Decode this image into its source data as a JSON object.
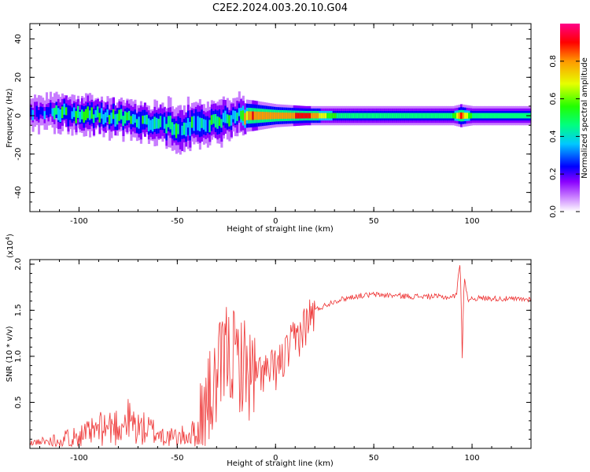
{
  "title": "C2E2.2024.003.20.10.G04",
  "chart_data": [
    {
      "type": "heatmap",
      "xlabel": "Height of straight line (km)",
      "ylabel": "Frequency (Hz)",
      "xlim": [
        -125,
        130
      ],
      "ylim": [
        -50,
        48
      ],
      "x_ticks": [
        -100,
        -50,
        0,
        50,
        100
      ],
      "y_ticks": [
        -40,
        -20,
        0,
        20,
        40
      ],
      "colorbar": {
        "label": "Normalized spectral amplitude",
        "range": [
          0,
          1
        ],
        "ticks": [
          "0.0",
          "0.2",
          "0.4",
          "0.6",
          "0.8"
        ],
        "tick_values": [
          0.0,
          0.2,
          0.4,
          0.6,
          0.8
        ],
        "colors": [
          "#ffffff",
          "#c87dff",
          "#8a00ff",
          "#0000ff",
          "#00c8ff",
          "#00ff7f",
          "#22ff00",
          "#e6ff00",
          "#ff9900",
          "#ff0000",
          "#ff0088"
        ]
      },
      "ridge": [
        {
          "x": -120,
          "center_hz": 2,
          "width_hz": 8,
          "amplitude": 0.3
        },
        {
          "x": -110,
          "center_hz": 2,
          "width_hz": 9,
          "amplitude": 0.45
        },
        {
          "x": -100,
          "center_hz": 1,
          "width_hz": 9,
          "amplitude": 0.5
        },
        {
          "x": -90,
          "center_hz": 0,
          "width_hz": 9,
          "amplitude": 0.5
        },
        {
          "x": -80,
          "center_hz": -1,
          "width_hz": 9,
          "amplitude": 0.5
        },
        {
          "x": -70,
          "center_hz": -2,
          "width_hz": 9,
          "amplitude": 0.5
        },
        {
          "x": -60,
          "center_hz": -4,
          "width_hz": 10,
          "amplitude": 0.45
        },
        {
          "x": -50,
          "center_hz": -6,
          "width_hz": 11,
          "amplitude": 0.45
        },
        {
          "x": -40,
          "center_hz": -5,
          "width_hz": 11,
          "amplitude": 0.45
        },
        {
          "x": -30,
          "center_hz": -3,
          "width_hz": 10,
          "amplitude": 0.45
        },
        {
          "x": -20,
          "center_hz": 0,
          "width_hz": 9,
          "amplitude": 0.5
        },
        {
          "x": -12,
          "center_hz": 0,
          "width_hz": 8,
          "amplitude": 0.85
        },
        {
          "x": 0,
          "center_hz": 0,
          "width_hz": 6,
          "amplitude": 0.75
        },
        {
          "x": 15,
          "center_hz": 0,
          "width_hz": 5,
          "amplitude": 0.9
        },
        {
          "x": 30,
          "center_hz": 0,
          "width_hz": 5,
          "amplitude": 0.55
        },
        {
          "x": 60,
          "center_hz": 0,
          "width_hz": 5,
          "amplitude": 0.5
        },
        {
          "x": 90,
          "center_hz": 0,
          "width_hz": 5,
          "amplitude": 0.55
        },
        {
          "x": 94,
          "center_hz": 0,
          "width_hz": 6,
          "amplitude": 0.85
        },
        {
          "x": 100,
          "center_hz": 0,
          "width_hz": 5,
          "amplitude": 0.5
        },
        {
          "x": 130,
          "center_hz": 0,
          "width_hz": 5,
          "amplitude": 0.5
        }
      ]
    },
    {
      "type": "line",
      "xlabel": "Height of straight line (km)",
      "ylabel": "SNR (10 * v/v)",
      "y_multiplier": "(x10",
      "y_multiplier_exp": "4",
      "y_multiplier_close": ")",
      "xlim": [
        -125,
        130
      ],
      "ylim": [
        0,
        2.05
      ],
      "x_ticks": [
        -100,
        -50,
        0,
        50,
        100
      ],
      "y_ticks": [
        0.5,
        1.0,
        1.5,
        2.0
      ],
      "y_tick_labels": [
        "0.5",
        "1.0",
        "1.5",
        "2.0"
      ],
      "color": "#ee3333",
      "series": [
        {
          "x": [
            -125,
            -115,
            -105,
            -95,
            -88,
            -80,
            -75,
            -70,
            -65,
            -60,
            -55,
            -50,
            -45,
            -40,
            -37,
            -34,
            -31,
            -28,
            -25,
            -22,
            -19,
            -16,
            -13,
            -10,
            -7,
            -4,
            -1,
            2,
            5,
            8,
            11,
            14,
            17,
            20,
            25,
            30,
            40,
            50,
            60,
            70,
            80,
            88,
            92,
            94,
            95,
            96,
            97,
            98,
            100,
            110,
            120,
            130
          ],
          "y": [
            0.05,
            0.08,
            0.12,
            0.16,
            0.22,
            0.25,
            0.3,
            0.22,
            0.2,
            0.17,
            0.12,
            0.12,
            0.14,
            0.18,
            0.35,
            0.5,
            0.65,
            0.85,
            1.05,
            1.0,
            0.95,
            0.9,
            0.8,
            0.75,
            0.85,
            0.8,
            0.85,
            0.9,
            1.0,
            1.1,
            1.2,
            1.3,
            1.4,
            1.5,
            1.55,
            1.6,
            1.65,
            1.67,
            1.66,
            1.65,
            1.65,
            1.64,
            1.66,
            2.05,
            1.0,
            1.9,
            1.7,
            1.62,
            1.63,
            1.63,
            1.62,
            1.62
          ]
        }
      ]
    }
  ]
}
